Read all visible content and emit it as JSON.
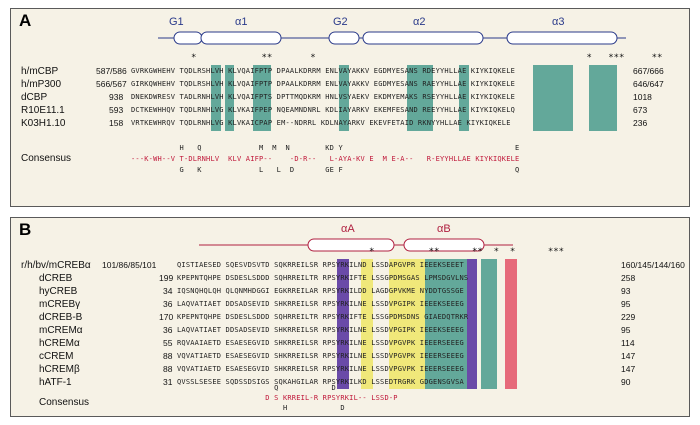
{
  "panelA": {
    "label": "A",
    "helices": [
      "G1",
      "α1",
      "G2",
      "α2",
      "α3"
    ],
    "stars": "*            **       *                                                  *   ***     **",
    "rows": [
      {
        "species": "h/mCBP",
        "start": "587/586",
        "seq": "GVRKGWHEHV TQDLRSHLVH KLVQAIFPTP DPAALKDRRM ENLVAYAKKV EGDMYESANS RDEYYHLLAE KIYKIQKELE",
        "end": "667/666"
      },
      {
        "species": "h/mP300",
        "start": "566/567",
        "seq": "GIRKQWHEHV TQDLRSHLVH KLVQAIFPTP DPAALKDRRM ENLVAYAKKV EGDMYESANS RAEYYHLLAE KIYKIQKELE",
        "end": "646/647"
      },
      {
        "species": "dCBP",
        "start": "938",
        "seq": "DNEKDWRESV TADLRNHLVH KLVQAIFPTS DPTTMQDKRM HNLVSYAEKV EKDMYEMAKS RSEYYHLLAE KIYKIQKELE",
        "end": "1018"
      },
      {
        "species": "R10E11.1",
        "start": "593",
        "seq": "DCTKEWHHQV TQDLRNHLVG KLVKAIFPEP NQEAMNDNRL KDLIAYARKV EKEMFESAND REEYYHLLAE KIYKIQKELQ",
        "end": "673"
      },
      {
        "species": "K03H1.10",
        "start": "158",
        "seq": "VRTKEWHRQV TQDLRNHLVG KLVKAICPAP EM--NDRRL KDLNAYARKV EKEVFETAID RKNYYHLLAE KIYKIQKELE",
        "end": "236"
      }
    ],
    "consensus_label": "Consensus",
    "consensus_line1": "---K-WH--V T-DLRNHLV  KLV AIFP--    -D-R--   L-AYA-KV E  M E-A--   R-EYYHLLAE KIYKIQKELE",
    "consensus_above": "           H   Q             M  M  N        KD Y                                       E",
    "consensus_below": "           G   K             L   L  D       GE F                                       Q"
  },
  "panelB": {
    "label": "B",
    "helices": [
      "αA",
      "αB"
    ],
    "stars": "                                                       *          **      **  *  *      ***",
    "rows": [
      {
        "species": "r/h/bv/mCREBα",
        "start": "101/86/85/101",
        "seq": "QISTIAESED SQESVDSVTD SQKRREILSR RPSYRKILND LSSDAPGVPR IEEEKSEEET",
        "end": "160/145/144/160"
      },
      {
        "species": "dCREB",
        "start": "199",
        "seq": "KPEPNTQHPE DSDESLSDDD SQHRREILTR RPSYRKIFTE LSSGPDMSGAS LPMSDGVLNS",
        "end": "258"
      },
      {
        "species": "hyCREB",
        "start": "34",
        "seq": "IQSNQHQLQH QLQNMHDGGI EGKRREILAR RPSYRKILDD LAGDGPVKME NYDDTGSSGE",
        "end": "93"
      },
      {
        "species": "mCREBγ",
        "start": "36",
        "seq": "LAQVATIAET DDSADSEVID SHKRREILSR RPSYRKILNE LSSDVPGIPK IEEEKSEEEG",
        "end": "95"
      },
      {
        "species": "dCREB-B",
        "start": "170",
        "seq": "KPEPNTQHPE DSDESLSDDD SQHRREILTR RPSYRKIFTE LSSGPDMSDNS GIAEDQTRKR",
        "end": "229"
      },
      {
        "species": "mCREMα",
        "start": "36",
        "seq": "LAQVATIAET DDSADSEVID SHKRREILSR RPSYRKILNE LSSDVPGIPK IEEEKSEEEG",
        "end": "95"
      },
      {
        "species": "hCREMα",
        "start": "55",
        "seq": "RQVAAIAETD ESAESEGVID SHKRREILSR RPSYRKILNE LSSDVPGVPK IEEERSEEEG",
        "end": "114"
      },
      {
        "species": "cCREM",
        "start": "88",
        "seq": "VQVATIAETD ESAESEGVID SHKRREILSR RPSYRKILNE LSSDVPGVPK IEEERSEEEG",
        "end": "147"
      },
      {
        "species": "hCREMβ",
        "start": "88",
        "seq": "VQVATIAETD ESAESEGVID SHKRREILSR RPSYRKILNE LSSDVPGVPK IEEERSEEEG",
        "end": "147"
      },
      {
        "species": "hATF-1",
        "start": "31",
        "seq": "QVSSLSESEE SQDSSDSIGS SQKAHGILAR RPSYRKILKD LSSEDTRGRK GDGENSGVSA",
        "end": "90"
      }
    ],
    "consensus_label": "Consensus",
    "consensus_above": "                      Q            D",
    "consensus_line1": "                    D S KRREIL-R RPSYRKIL-- LSSD-P",
    "consensus_below": "                        H            D"
  }
}
